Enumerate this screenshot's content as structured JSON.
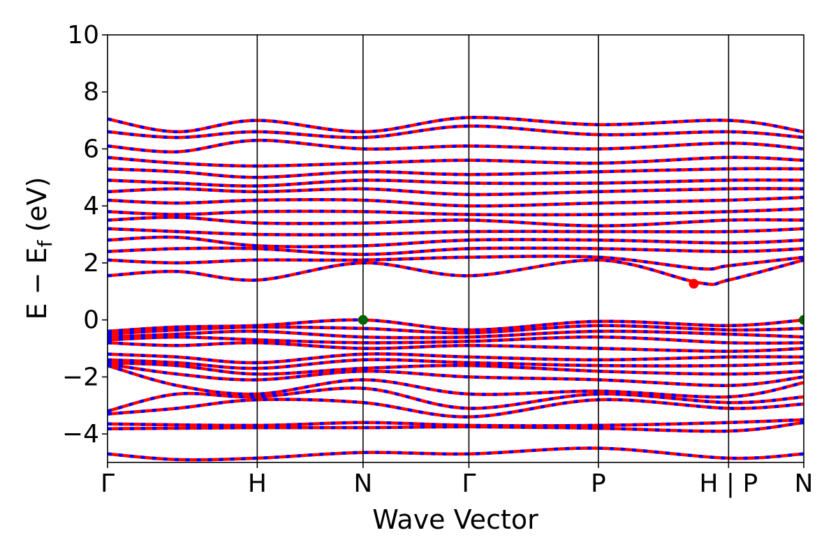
{
  "chart_data": {
    "type": "line",
    "title": "",
    "xlabel": "Wave Vector",
    "ylabel": {
      "main": "E − E",
      "sub": "f",
      "unit": " (eV)"
    },
    "ylim": [
      -5,
      10
    ],
    "yticks": [
      -4,
      -2,
      0,
      2,
      4,
      6,
      8,
      10
    ],
    "ytick_labels": [
      "−4",
      "−2",
      "0",
      "2",
      "4",
      "6",
      "8",
      "10"
    ],
    "xlim": [
      0,
      1
    ],
    "kpoint_path": [
      {
        "label": "Γ",
        "x": 0.0
      },
      {
        "label": "H",
        "x": 0.215
      },
      {
        "label": "N",
        "x": 0.367
      },
      {
        "label": "Γ",
        "x": 0.519
      },
      {
        "label": "P",
        "x": 0.705
      },
      {
        "label": "H | P",
        "x": 0.892
      },
      {
        "label": "N",
        "x": 1.0
      }
    ],
    "grid": false,
    "legend": "none",
    "colors": {
      "spin_up": "#ff0000",
      "spin_down": "#0000ff",
      "vbm": "#006400",
      "cbm": "#ff0000"
    },
    "series": [
      {
        "values": [
          [
            0,
            -3.82
          ],
          [
            0.215,
            -3.78
          ],
          [
            0.367,
            -3.78
          ],
          [
            0.519,
            -3.75
          ],
          [
            0.705,
            -3.8
          ],
          [
            0.892,
            -3.9
          ],
          [
            1.0,
            -3.6
          ]
        ]
      },
      {
        "values": [
          [
            0,
            -3.65
          ],
          [
            0.215,
            -3.7
          ],
          [
            0.367,
            -3.6
          ],
          [
            0.519,
            -3.7
          ],
          [
            0.705,
            -3.7
          ],
          [
            0.892,
            -3.6
          ],
          [
            1.0,
            -3.5
          ]
        ]
      },
      {
        "values": [
          [
            0,
            -3.3
          ],
          [
            0.1,
            -3.1
          ],
          [
            0.215,
            -2.8
          ],
          [
            0.367,
            -2.9
          ],
          [
            0.519,
            -3.4
          ],
          [
            0.705,
            -2.8
          ],
          [
            0.892,
            -3.1
          ],
          [
            1.0,
            -2.95
          ]
        ]
      },
      {
        "values": [
          [
            0,
            -3.2
          ],
          [
            0.1,
            -2.6
          ],
          [
            0.215,
            -2.7
          ],
          [
            0.367,
            -2.4
          ],
          [
            0.519,
            -3.1
          ],
          [
            0.705,
            -2.6
          ],
          [
            0.892,
            -2.9
          ],
          [
            1.0,
            -2.7
          ]
        ]
      },
      {
        "values": [
          [
            0,
            -1.6
          ],
          [
            0.1,
            -2.3
          ],
          [
            0.215,
            -2.6
          ],
          [
            0.367,
            -2.1
          ],
          [
            0.519,
            -2.6
          ],
          [
            0.705,
            -2.5
          ],
          [
            0.892,
            -2.7
          ],
          [
            1.0,
            -2.2
          ]
        ]
      },
      {
        "values": [
          [
            0,
            -1.55
          ],
          [
            0.1,
            -1.9
          ],
          [
            0.215,
            -2.1
          ],
          [
            0.367,
            -1.8
          ],
          [
            0.519,
            -2.0
          ],
          [
            0.705,
            -2.1
          ],
          [
            0.892,
            -2.3
          ],
          [
            1.0,
            -2.0
          ]
        ]
      },
      {
        "values": [
          [
            0,
            -1.5
          ],
          [
            0.1,
            -1.6
          ],
          [
            0.215,
            -1.9
          ],
          [
            0.367,
            -1.7
          ],
          [
            0.519,
            -1.6
          ],
          [
            0.705,
            -1.8
          ],
          [
            0.892,
            -1.9
          ],
          [
            1.0,
            -1.8
          ]
        ]
      },
      {
        "values": [
          [
            0,
            -1.4
          ],
          [
            0.1,
            -1.5
          ],
          [
            0.215,
            -1.7
          ],
          [
            0.367,
            -1.4
          ],
          [
            0.519,
            -1.5
          ],
          [
            0.705,
            -1.6
          ],
          [
            0.892,
            -1.6
          ],
          [
            1.0,
            -1.5
          ]
        ]
      },
      {
        "values": [
          [
            0,
            -1.2
          ],
          [
            0.1,
            -1.3
          ],
          [
            0.215,
            -1.5
          ],
          [
            0.367,
            -1.2
          ],
          [
            0.519,
            -1.3
          ],
          [
            0.705,
            -1.4
          ],
          [
            0.892,
            -1.3
          ],
          [
            1.0,
            -1.3
          ]
        ]
      },
      {
        "values": [
          [
            0,
            -0.8
          ],
          [
            0.1,
            -0.9
          ],
          [
            0.215,
            -0.8
          ],
          [
            0.367,
            -1.0
          ],
          [
            0.519,
            -0.9
          ],
          [
            0.705,
            -1.0
          ],
          [
            0.892,
            -1.1
          ],
          [
            1.0,
            -1.0
          ]
        ]
      },
      {
        "values": [
          [
            0,
            -0.7
          ],
          [
            0.1,
            -0.6
          ],
          [
            0.215,
            -0.7
          ],
          [
            0.367,
            -0.8
          ],
          [
            0.519,
            -0.75
          ],
          [
            0.705,
            -0.6
          ],
          [
            0.892,
            -0.8
          ],
          [
            1.0,
            -0.8
          ]
        ]
      },
      {
        "values": [
          [
            0,
            -0.6
          ],
          [
            0.1,
            -0.5
          ],
          [
            0.215,
            -0.4
          ],
          [
            0.367,
            -0.6
          ],
          [
            0.519,
            -0.6
          ],
          [
            0.705,
            -0.4
          ],
          [
            0.892,
            -0.5
          ],
          [
            1.0,
            -0.6
          ]
        ]
      },
      {
        "values": [
          [
            0,
            -0.5
          ],
          [
            0.1,
            -0.35
          ],
          [
            0.215,
            -0.25
          ],
          [
            0.367,
            -0.3
          ],
          [
            0.519,
            -0.45
          ],
          [
            0.705,
            -0.2
          ],
          [
            0.892,
            -0.35
          ],
          [
            1.0,
            -0.3
          ]
        ]
      },
      {
        "values": [
          [
            0,
            -0.4
          ],
          [
            0.1,
            -0.25
          ],
          [
            0.215,
            -0.2
          ],
          [
            0.367,
            0.0
          ],
          [
            0.519,
            -0.35
          ],
          [
            0.705,
            -0.05
          ],
          [
            0.892,
            -0.2
          ],
          [
            1.0,
            0.0
          ]
        ]
      },
      {
        "values": [
          [
            0,
            1.55
          ],
          [
            0.1,
            1.7
          ],
          [
            0.215,
            1.4
          ],
          [
            0.367,
            2.0
          ],
          [
            0.519,
            1.55
          ],
          [
            0.705,
            2.1
          ],
          [
            0.85,
            1.3
          ],
          [
            0.892,
            1.4
          ],
          [
            1.0,
            2.1
          ]
        ]
      },
      {
        "values": [
          [
            0,
            2.1
          ],
          [
            0.1,
            2.0
          ],
          [
            0.215,
            2.1
          ],
          [
            0.367,
            2.1
          ],
          [
            0.519,
            2.2
          ],
          [
            0.705,
            2.2
          ],
          [
            0.85,
            1.8
          ],
          [
            0.892,
            1.9
          ],
          [
            1.0,
            2.2
          ]
        ]
      },
      {
        "values": [
          [
            0,
            2.4
          ],
          [
            0.1,
            2.5
          ],
          [
            0.215,
            2.5
          ],
          [
            0.367,
            2.3
          ],
          [
            0.519,
            2.5
          ],
          [
            0.705,
            2.5
          ],
          [
            0.892,
            2.4
          ],
          [
            1.0,
            2.5
          ]
        ]
      },
      {
        "values": [
          [
            0,
            2.8
          ],
          [
            0.1,
            2.9
          ],
          [
            0.215,
            2.6
          ],
          [
            0.367,
            2.6
          ],
          [
            0.519,
            2.8
          ],
          [
            0.705,
            2.8
          ],
          [
            0.892,
            2.7
          ],
          [
            1.0,
            2.8
          ]
        ]
      },
      {
        "values": [
          [
            0,
            3.2
          ],
          [
            0.1,
            3.1
          ],
          [
            0.215,
            3.0
          ],
          [
            0.367,
            3.0
          ],
          [
            0.519,
            3.1
          ],
          [
            0.705,
            3.1
          ],
          [
            0.892,
            3.1
          ],
          [
            1.0,
            3.2
          ]
        ]
      },
      {
        "values": [
          [
            0,
            3.5
          ],
          [
            0.1,
            3.6
          ],
          [
            0.215,
            3.4
          ],
          [
            0.367,
            3.4
          ],
          [
            0.519,
            3.5
          ],
          [
            0.705,
            3.3
          ],
          [
            0.892,
            3.5
          ],
          [
            1.0,
            3.5
          ]
        ]
      },
      {
        "values": [
          [
            0,
            3.8
          ],
          [
            0.1,
            3.7
          ],
          [
            0.215,
            3.8
          ],
          [
            0.367,
            3.8
          ],
          [
            0.519,
            3.7
          ],
          [
            0.705,
            3.7
          ],
          [
            0.892,
            3.8
          ],
          [
            1.0,
            3.9
          ]
        ]
      },
      {
        "values": [
          [
            0,
            4.2
          ],
          [
            0.1,
            4.1
          ],
          [
            0.215,
            4.2
          ],
          [
            0.367,
            4.2
          ],
          [
            0.519,
            4.0
          ],
          [
            0.705,
            4.1
          ],
          [
            0.892,
            4.2
          ],
          [
            1.0,
            4.3
          ]
        ]
      },
      {
        "values": [
          [
            0,
            4.5
          ],
          [
            0.1,
            4.6
          ],
          [
            0.215,
            4.5
          ],
          [
            0.367,
            4.6
          ],
          [
            0.519,
            4.4
          ],
          [
            0.705,
            4.5
          ],
          [
            0.892,
            4.6
          ],
          [
            1.0,
            4.6
          ]
        ]
      },
      {
        "values": [
          [
            0,
            4.9
          ],
          [
            0.1,
            4.8
          ],
          [
            0.215,
            4.7
          ],
          [
            0.367,
            4.9
          ],
          [
            0.519,
            4.8
          ],
          [
            0.705,
            4.8
          ],
          [
            0.892,
            4.9
          ],
          [
            1.0,
            4.9
          ]
        ]
      },
      {
        "values": [
          [
            0,
            5.3
          ],
          [
            0.1,
            5.2
          ],
          [
            0.215,
            5.0
          ],
          [
            0.367,
            5.2
          ],
          [
            0.519,
            5.1
          ],
          [
            0.705,
            5.2
          ],
          [
            0.892,
            5.3
          ],
          [
            1.0,
            5.3
          ]
        ]
      },
      {
        "values": [
          [
            0,
            5.7
          ],
          [
            0.1,
            5.5
          ],
          [
            0.215,
            5.4
          ],
          [
            0.367,
            5.5
          ],
          [
            0.519,
            5.6
          ],
          [
            0.705,
            5.5
          ],
          [
            0.892,
            5.7
          ],
          [
            1.0,
            5.6
          ]
        ]
      },
      {
        "values": [
          [
            0,
            6.1
          ],
          [
            0.1,
            5.9
          ],
          [
            0.215,
            6.3
          ],
          [
            0.367,
            6.0
          ],
          [
            0.519,
            6.1
          ],
          [
            0.705,
            6.0
          ],
          [
            0.892,
            6.2
          ],
          [
            1.0,
            6.0
          ]
        ]
      },
      {
        "values": [
          [
            0,
            6.6
          ],
          [
            0.1,
            6.4
          ],
          [
            0.215,
            6.6
          ],
          [
            0.367,
            6.4
          ],
          [
            0.519,
            6.8
          ],
          [
            0.705,
            6.5
          ],
          [
            0.892,
            6.6
          ],
          [
            1.0,
            6.4
          ]
        ]
      },
      {
        "values": [
          [
            0,
            7.05
          ],
          [
            0.1,
            6.6
          ],
          [
            0.215,
            7.0
          ],
          [
            0.367,
            6.6
          ],
          [
            0.519,
            7.1
          ],
          [
            0.705,
            6.85
          ],
          [
            0.892,
            7.0
          ],
          [
            1.0,
            6.6
          ]
        ]
      },
      {
        "values": [
          [
            0,
            -4.7
          ],
          [
            0.1,
            -4.9
          ],
          [
            0.215,
            -4.85
          ],
          [
            0.367,
            -4.65
          ],
          [
            0.519,
            -4.7
          ],
          [
            0.705,
            -4.5
          ],
          [
            0.892,
            -4.85
          ],
          [
            1.0,
            -4.7
          ]
        ]
      }
    ],
    "markers": [
      {
        "name": "vbm",
        "x": 0.367,
        "y": 0.0
      },
      {
        "name": "vbm",
        "x": 1.0,
        "y": 0.0
      },
      {
        "name": "cbm",
        "x": 0.842,
        "y": 1.27
      }
    ]
  }
}
